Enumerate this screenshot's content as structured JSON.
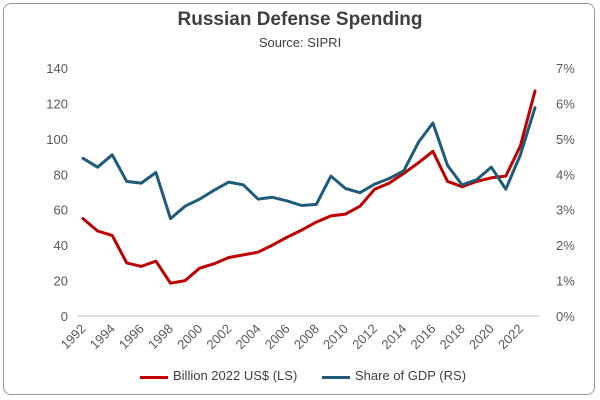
{
  "chart_data": {
    "type": "line",
    "title": "Russian Defense Spending",
    "subtitle": "Source: SIPRI",
    "x": [
      1992,
      1993,
      1994,
      1995,
      1996,
      1997,
      1998,
      1999,
      2000,
      2001,
      2002,
      2003,
      2004,
      2005,
      2006,
      2007,
      2008,
      2009,
      2010,
      2011,
      2012,
      2013,
      2014,
      2015,
      2016,
      2017,
      2018,
      2019,
      2020,
      2021,
      2022,
      2023
    ],
    "x_tick_labels": [
      "1992",
      "1994",
      "1996",
      "1998",
      "2000",
      "2002",
      "2004",
      "2006",
      "2008",
      "2010",
      "2012",
      "2014",
      "2016",
      "2018",
      "2020",
      "2022"
    ],
    "y_left_ticks": [
      "0",
      "20",
      "40",
      "60",
      "80",
      "100",
      "120",
      "140"
    ],
    "y_right_ticks": [
      "0%",
      "1%",
      "2%",
      "3%",
      "4%",
      "5%",
      "6%",
      "7%"
    ],
    "ylim_left": [
      0,
      140
    ],
    "ylim_right": [
      0,
      7
    ],
    "grid": false,
    "legend_position": "bottom",
    "series": [
      {
        "name": "Billion 2022 US$ (LS)",
        "axis": "left",
        "color": "#c00000",
        "values": [
          55,
          48,
          45.5,
          30,
          28,
          31,
          18.5,
          20,
          27,
          29.5,
          33,
          34.5,
          36,
          40,
          44.5,
          48.5,
          53,
          56.5,
          57.5,
          62,
          71.5,
          75,
          80.5,
          86.5,
          93,
          76,
          73,
          76,
          78,
          79,
          96,
          127
        ]
      },
      {
        "name": "Share of GDP (RS)",
        "axis": "right",
        "color": "#1f5c7a",
        "values": [
          4.45,
          4.2,
          4.55,
          3.8,
          3.75,
          4.05,
          2.75,
          3.1,
          3.3,
          3.55,
          3.78,
          3.7,
          3.3,
          3.35,
          3.25,
          3.12,
          3.15,
          3.95,
          3.6,
          3.48,
          3.72,
          3.88,
          4.1,
          4.9,
          5.45,
          4.25,
          3.7,
          3.85,
          4.2,
          3.58,
          4.55,
          5.88
        ]
      }
    ]
  }
}
